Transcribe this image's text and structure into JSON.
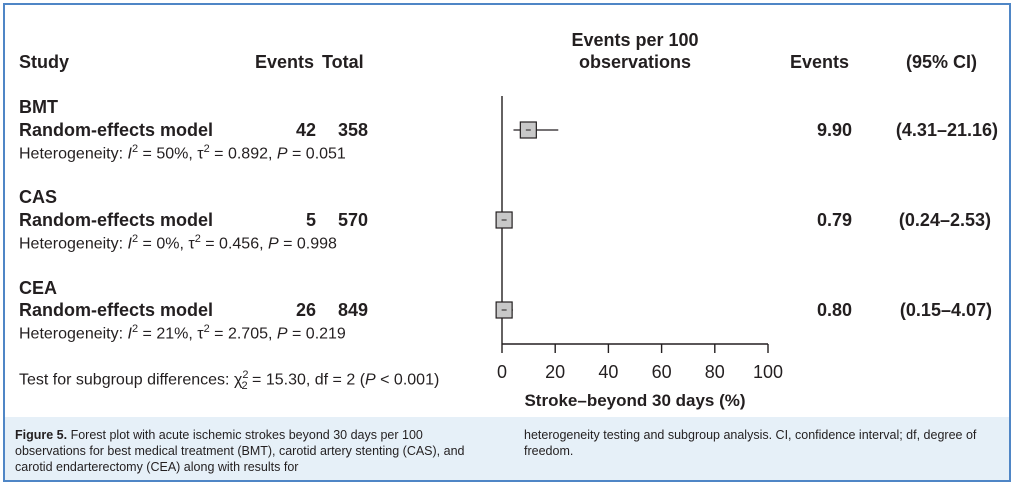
{
  "headers": {
    "study": "Study",
    "events": "Events",
    "total": "Total",
    "plot_line1": "Events per 100",
    "plot_line2": "observations",
    "rate": "Events",
    "ci": "(95% CI)"
  },
  "groups": [
    {
      "name": "BMT",
      "model": "Random-effects model",
      "events": "42",
      "total": "358",
      "het_prefix": "Heterogeneity: ",
      "het_I2": "= 50%, ",
      "het_tau2": "= 0.892, ",
      "het_P": "= 0.051",
      "rate": "9.90",
      "ci": "(4.31–21.16)"
    },
    {
      "name": "CAS",
      "model": "Random-effects model",
      "events": "5",
      "total": "570",
      "het_prefix": "Heterogeneity: ",
      "het_I2": "= 0%, ",
      "het_tau2": "= 0.456, ",
      "het_P": "= 0.998",
      "rate": "0.79",
      "ci": "(0.24–2.53)"
    },
    {
      "name": "CEA",
      "model": "Random-effects model",
      "events": "26",
      "total": "849",
      "het_prefix": "Heterogeneity: ",
      "het_I2": "= 21%, ",
      "het_tau2": "= 2.705, ",
      "het_P": "= 0.219",
      "rate": "0.80",
      "ci": "(0.15–4.07)"
    }
  ],
  "subgroup_test": {
    "prefix": "Test for subgroup differences: ",
    "chi_part": "= 15.30, df = 2 (",
    "p_part": " < 0.001)"
  },
  "caption": {
    "label": "Figure 5.",
    "text_left": "Forest plot with acute ischemic strokes beyond 30 days per 100 observations for best medical treatment (BMT), carotid artery stenting (CAS), and carotid endarterectomy (CEA) along with results for",
    "text_right": "heterogeneity testing and subgroup analysis. CI, confidence interval; df, degree of freedom."
  },
  "chart_data": {
    "type": "forest",
    "xlabel": "Stroke–beyond 30 days (%)",
    "xlim": [
      0,
      100
    ],
    "xticks": [
      "0",
      "20",
      "40",
      "60",
      "80",
      "100"
    ],
    "tick_values": [
      0,
      20,
      40,
      60,
      80,
      100
    ],
    "series": [
      {
        "name": "BMT",
        "estimate": 9.9,
        "ci_low": 4.31,
        "ci_high": 21.16
      },
      {
        "name": "CAS",
        "estimate": 0.79,
        "ci_low": 0.24,
        "ci_high": 2.53
      },
      {
        "name": "CEA",
        "estimate": 0.8,
        "ci_low": 0.15,
        "ci_high": 4.07
      }
    ]
  },
  "colors": {
    "frame": "#4f86c6",
    "caption_bg": "#e6f0f8",
    "box_fill": "#c8c8c8"
  }
}
